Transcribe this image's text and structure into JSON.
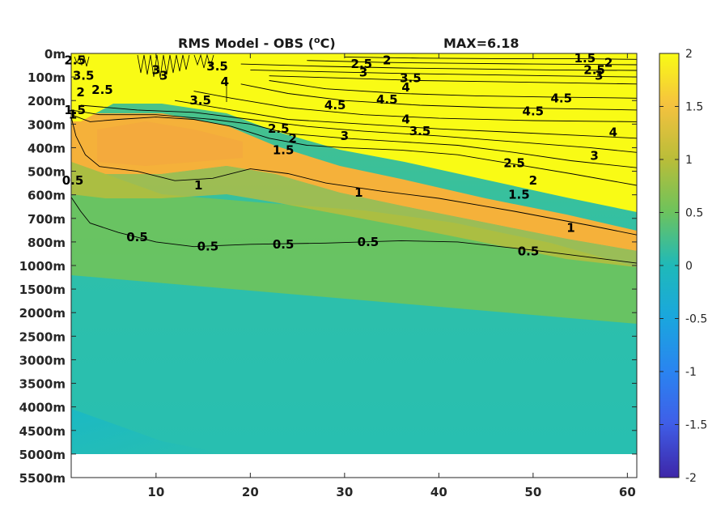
{
  "chart_data": {
    "type": "heatmap",
    "title": "RMS Model - OBS (",
    "title_unit": "oC",
    "title_close": ")",
    "max_label": "MAX=6.18",
    "x": {
      "ticks": [
        10,
        20,
        30,
        40,
        50,
        60
      ],
      "tick_labels": [
        "10",
        "20",
        "30",
        "40",
        "50",
        "60"
      ],
      "range": [
        1,
        61
      ]
    },
    "y": {
      "reversed": true,
      "tick_labels": [
        "0m",
        "100m",
        "200m",
        "300m",
        "400m",
        "500m",
        "600m",
        "700m",
        "800m",
        "1000m",
        "1500m",
        "2000m",
        "2500m",
        "3000m",
        "3500m",
        "4000m",
        "4500m",
        "5000m",
        "5500m"
      ]
    },
    "colorbar": {
      "range": [
        -2,
        2
      ],
      "ticks": [
        2,
        1.5,
        1,
        0.5,
        0,
        -0.5,
        -1,
        -1.5,
        -2
      ],
      "tick_labels": [
        "2",
        "1.5",
        "1",
        "0.5",
        "0",
        "-0.5",
        "-1",
        "-1.5",
        "-2"
      ],
      "colormap": "parula"
    },
    "colors": {
      "high": "#f9fb15",
      "orange": "#f6b13a",
      "olive": "#b3bc38",
      "green": "#6fc35b",
      "teal_light": "#40c08f",
      "teal": "#2bbfac",
      "teal_dark": "#19b9c4",
      "blue": "#2980f0",
      "purple": "#3e26a8"
    },
    "contour_labels": [
      {
        "text": "2.5",
        "x": 1.4,
        "depth_index": 0.3
      },
      {
        "text": "1.5",
        "x": 55.5,
        "depth_index": 0.2
      },
      {
        "text": "2",
        "x": 58.0,
        "depth_index": 0.4
      },
      {
        "text": "2.5",
        "x": 56.5,
        "depth_index": 0.7
      },
      {
        "text": "3",
        "x": 57.0,
        "depth_index": 0.95
      },
      {
        "text": "2.5",
        "x": 31.8,
        "depth_index": 0.45
      },
      {
        "text": "2",
        "x": 34.5,
        "depth_index": 0.3
      },
      {
        "text": "3",
        "x": 32.0,
        "depth_index": 0.8
      },
      {
        "text": "3.5",
        "x": 16.5,
        "depth_index": 0.55
      },
      {
        "text": "3",
        "x": 10.0,
        "depth_index": 0.7
      },
      {
        "text": "3",
        "x": 10.8,
        "depth_index": 0.95
      },
      {
        "text": "4",
        "x": 17.3,
        "depth_index": 1.2
      },
      {
        "text": "3.5",
        "x": 37.0,
        "depth_index": 1.05
      },
      {
        "text": "4",
        "x": 36.5,
        "depth_index": 1.45
      },
      {
        "text": "3.5",
        "x": 2.3,
        "depth_index": 0.95
      },
      {
        "text": "2.5",
        "x": 4.3,
        "depth_index": 1.55
      },
      {
        "text": "2",
        "x": 2.0,
        "depth_index": 1.65
      },
      {
        "text": "1.5",
        "x": 1.4,
        "depth_index": 2.4
      },
      {
        "text": "1",
        "x": 0.9,
        "depth_index": 2.6
      },
      {
        "text": "3.5",
        "x": 14.7,
        "depth_index": 2.0
      },
      {
        "text": "4.5",
        "x": 29.0,
        "depth_index": 2.2
      },
      {
        "text": "4.5",
        "x": 34.5,
        "depth_index": 1.95
      },
      {
        "text": "4.5",
        "x": 53.0,
        "depth_index": 1.9
      },
      {
        "text": "4.5",
        "x": 50.0,
        "depth_index": 2.45
      },
      {
        "text": "4",
        "x": 36.5,
        "depth_index": 2.8
      },
      {
        "text": "3.5",
        "x": 38.0,
        "depth_index": 3.3
      },
      {
        "text": "4",
        "x": 58.5,
        "depth_index": 3.35
      },
      {
        "text": "3",
        "x": 30.0,
        "depth_index": 3.5
      },
      {
        "text": "3",
        "x": 56.5,
        "depth_index": 4.35
      },
      {
        "text": "2.5",
        "x": 23.0,
        "depth_index": 3.2
      },
      {
        "text": "2",
        "x": 24.5,
        "depth_index": 3.6
      },
      {
        "text": "1.5",
        "x": 23.5,
        "depth_index": 4.1
      },
      {
        "text": "2.5",
        "x": 48.0,
        "depth_index": 4.65
      },
      {
        "text": "2",
        "x": 50.0,
        "depth_index": 5.4
      },
      {
        "text": "1.5",
        "x": 48.5,
        "depth_index": 6.0
      },
      {
        "text": "1",
        "x": 14.5,
        "depth_index": 5.6
      },
      {
        "text": "1",
        "x": 31.5,
        "depth_index": 5.9
      },
      {
        "text": "1",
        "x": 54.0,
        "depth_index": 7.4
      },
      {
        "text": "0.5",
        "x": 0.9,
        "depth_index": 5.4
      },
      {
        "text": "0.5",
        "x": 8.0,
        "depth_index": 7.8
      },
      {
        "text": "0.5",
        "x": 15.5,
        "depth_index": 8.2
      },
      {
        "text": "0.5",
        "x": 23.5,
        "depth_index": 8.1
      },
      {
        "text": "0.5",
        "x": 32.5,
        "depth_index": 8.0
      },
      {
        "text": "0.5",
        "x": 49.5,
        "depth_index": 8.4
      }
    ],
    "contour_lines": [
      {
        "level": 1.0,
        "points": [
          [
            1,
            2.7
          ],
          [
            1.5,
            3.5
          ],
          [
            2.5,
            4.3
          ],
          [
            4,
            4.8
          ],
          [
            8,
            5.0
          ],
          [
            12,
            5.4
          ],
          [
            16,
            5.3
          ],
          [
            20,
            4.9
          ],
          [
            24,
            5.1
          ],
          [
            28,
            5.5
          ],
          [
            34,
            5.85
          ],
          [
            40,
            6.15
          ],
          [
            48,
            6.7
          ],
          [
            56,
            7.3
          ],
          [
            61,
            7.7
          ]
        ]
      },
      {
        "level": 0.5,
        "points": [
          [
            1,
            6.1
          ],
          [
            2,
            6.7
          ],
          [
            3,
            7.2
          ],
          [
            6,
            7.6
          ],
          [
            10,
            8.0
          ],
          [
            14,
            8.2
          ],
          [
            20,
            8.1
          ],
          [
            28,
            8.05
          ],
          [
            36,
            7.95
          ],
          [
            42,
            8.0
          ],
          [
            50,
            8.35
          ],
          [
            56,
            8.65
          ],
          [
            61,
            8.9
          ]
        ]
      },
      {
        "level": 1.5,
        "points": [
          [
            1,
            2.6
          ],
          [
            3,
            2.9
          ],
          [
            6,
            2.8
          ],
          [
            10,
            2.7
          ],
          [
            14,
            2.8
          ],
          [
            18,
            3.1
          ],
          [
            22,
            3.6
          ],
          [
            26,
            3.9
          ],
          [
            30,
            4.0
          ],
          [
            36,
            4.1
          ],
          [
            42,
            4.3
          ],
          [
            48,
            4.7
          ],
          [
            54,
            5.1
          ],
          [
            61,
            5.6
          ]
        ]
      },
      {
        "level": 2.0,
        "points": [
          [
            1,
            2.4
          ],
          [
            4,
            2.6
          ],
          [
            10,
            2.6
          ],
          [
            16,
            2.8
          ],
          [
            20,
            3.0
          ],
          [
            24,
            3.4
          ],
          [
            30,
            3.6
          ],
          [
            36,
            3.75
          ],
          [
            42,
            3.9
          ],
          [
            48,
            4.2
          ],
          [
            54,
            4.55
          ],
          [
            61,
            4.85
          ]
        ]
      },
      {
        "level": 2.5,
        "points": [
          [
            2,
            2.2
          ],
          [
            8,
            2.4
          ],
          [
            14,
            2.5
          ],
          [
            20,
            2.8
          ],
          [
            26,
            3.1
          ],
          [
            32,
            3.3
          ],
          [
            40,
            3.5
          ],
          [
            48,
            3.75
          ],
          [
            56,
            4.0
          ],
          [
            61,
            4.2
          ]
        ]
      },
      {
        "level": 3.0,
        "points": [
          [
            12,
            2.0
          ],
          [
            18,
            2.4
          ],
          [
            24,
            2.8
          ],
          [
            32,
            3.0
          ],
          [
            40,
            3.2
          ],
          [
            48,
            3.35
          ],
          [
            56,
            3.5
          ],
          [
            61,
            3.6
          ]
        ]
      },
      {
        "level": 3.5,
        "points": [
          [
            14,
            1.6
          ],
          [
            18,
            1.9
          ],
          [
            24,
            2.3
          ],
          [
            32,
            2.6
          ],
          [
            40,
            2.75
          ],
          [
            50,
            2.85
          ],
          [
            61,
            2.9
          ]
        ]
      },
      {
        "level": 4.0,
        "points": [
          [
            19,
            1.3
          ],
          [
            24,
            1.7
          ],
          [
            30,
            2.0
          ],
          [
            38,
            2.2
          ],
          [
            46,
            2.3
          ],
          [
            54,
            2.35
          ],
          [
            61,
            2.4
          ]
        ]
      },
      {
        "level": 4.5,
        "points": [
          [
            22,
            1.15
          ],
          [
            28,
            1.5
          ],
          [
            36,
            1.7
          ],
          [
            44,
            1.8
          ],
          [
            52,
            1.85
          ],
          [
            61,
            1.9
          ]
        ]
      },
      {
        "level": 4.0,
        "points": [
          [
            22,
            0.95
          ],
          [
            30,
            1.05
          ],
          [
            38,
            1.15
          ],
          [
            46,
            1.2
          ],
          [
            54,
            1.25
          ],
          [
            61,
            1.3
          ]
        ]
      },
      {
        "level": 3.5,
        "points": [
          [
            20,
            0.7
          ],
          [
            28,
            0.78
          ],
          [
            36,
            0.85
          ],
          [
            44,
            0.9
          ],
          [
            52,
            0.95
          ],
          [
            61,
            1.0
          ]
        ]
      },
      {
        "level": 3.0,
        "points": [
          [
            19,
            0.45
          ],
          [
            28,
            0.55
          ],
          [
            36,
            0.62
          ],
          [
            44,
            0.66
          ],
          [
            52,
            0.7
          ],
          [
            61,
            0.72
          ]
        ]
      },
      {
        "level": 2.5,
        "points": [
          [
            26,
            0.3
          ],
          [
            34,
            0.38
          ],
          [
            42,
            0.42
          ],
          [
            50,
            0.45
          ],
          [
            61,
            0.48
          ]
        ]
      },
      {
        "level": 2.0,
        "points": [
          [
            30,
            0.15
          ],
          [
            38,
            0.2
          ],
          [
            46,
            0.22
          ],
          [
            54,
            0.22
          ],
          [
            61,
            0.25
          ]
        ]
      }
    ]
  }
}
